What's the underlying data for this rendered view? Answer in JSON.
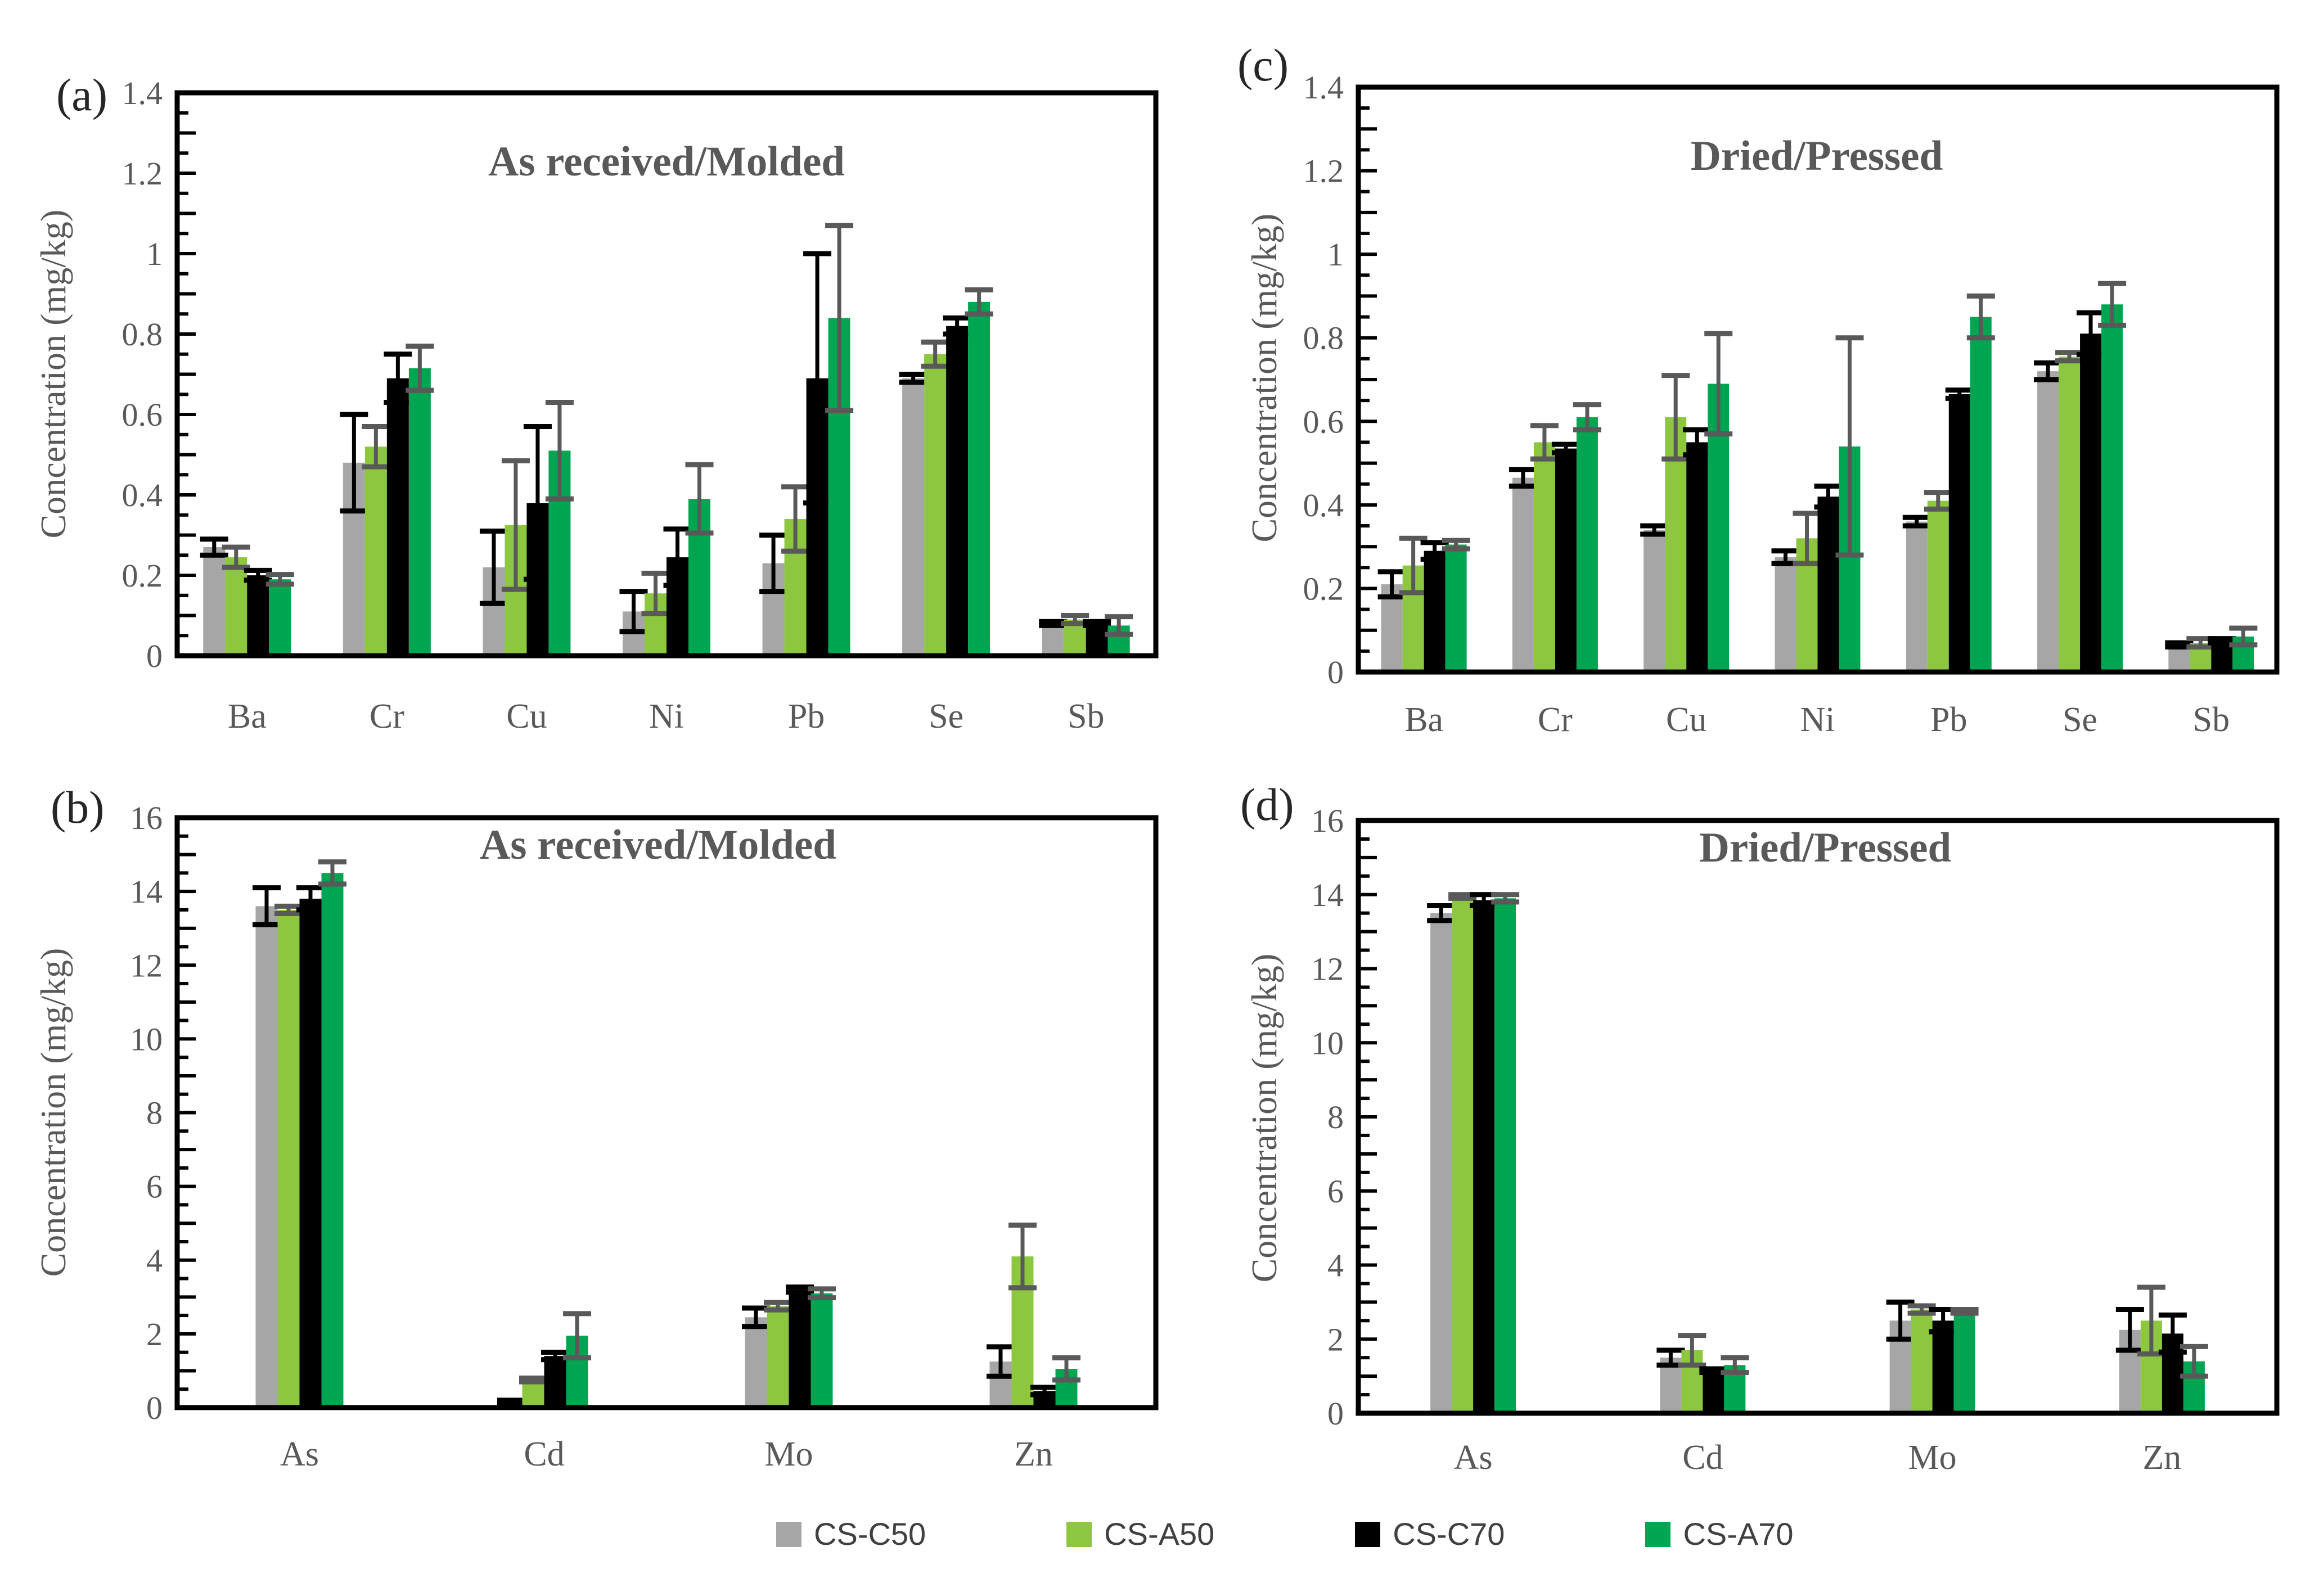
{
  "figure": {
    "background": "#ffffff",
    "text_color": "#595959",
    "axis_color": "#000000",
    "series": [
      {
        "label": "CS-C50",
        "color": "#A6A6A6",
        "error_color": "#000000"
      },
      {
        "label": "CS-A50",
        "color": "#8DC63F",
        "error_color": "#595959"
      },
      {
        "label": "CS-C70",
        "color": "#000000",
        "error_color": "#000000"
      },
      {
        "label": "CS-A70",
        "color": "#00A551",
        "error_color": "#595959"
      }
    ]
  },
  "chart_data": [
    {
      "id": "a",
      "type": "bar",
      "panel_label": "(a)",
      "title": "As received/Molded",
      "ylabel": "Concentration (mg/kg)",
      "ylim": [
        0,
        1.4
      ],
      "ytick_label_step": 0.2,
      "ytick_minor_step": 0.05,
      "grid": false,
      "categories": [
        "Ba",
        "Cr",
        "Cu",
        "Ni",
        "Pb",
        "Se",
        "Sb"
      ],
      "series": [
        {
          "name": "CS-C50",
          "values": [
            0.27,
            0.48,
            0.22,
            0.11,
            0.23,
            0.69,
            0.08
          ],
          "errors": [
            0.02,
            0.12,
            0.09,
            0.05,
            0.07,
            0.01,
            0.005
          ]
        },
        {
          "name": "CS-A50",
          "values": [
            0.245,
            0.52,
            0.325,
            0.155,
            0.34,
            0.75,
            0.09
          ],
          "errors": [
            0.025,
            0.05,
            0.16,
            0.05,
            0.08,
            0.03,
            0.01
          ]
        },
        {
          "name": "CS-C70",
          "values": [
            0.2,
            0.69,
            0.38,
            0.245,
            0.69,
            0.82,
            0.08
          ],
          "errors": [
            0.012,
            0.06,
            0.19,
            0.07,
            0.31,
            0.02,
            0.005
          ]
        },
        {
          "name": "CS-A70",
          "values": [
            0.19,
            0.715,
            0.51,
            0.39,
            0.84,
            0.88,
            0.075
          ],
          "errors": [
            0.012,
            0.055,
            0.12,
            0.085,
            0.23,
            0.03,
            0.022
          ]
        }
      ]
    },
    {
      "id": "b",
      "type": "bar",
      "panel_label": "(b)",
      "title": "As received/Molded",
      "ylabel": "Concentration (mg/kg)",
      "ylim": [
        0,
        16
      ],
      "ytick_label_step": 2,
      "ytick_minor_step": 0.5,
      "grid": false,
      "categories": [
        "As",
        "Cd",
        "Mo",
        "Zn"
      ],
      "series": [
        {
          "name": "CS-C50",
          "values": [
            13.6,
            0.15,
            2.45,
            1.25
          ],
          "errors": [
            0.5,
            0.05,
            0.25,
            0.4
          ]
        },
        {
          "name": "CS-A50",
          "values": [
            13.5,
            0.75,
            2.75,
            4.1
          ],
          "errors": [
            0.1,
            0.05,
            0.1,
            0.85
          ]
        },
        {
          "name": "CS-C70",
          "values": [
            13.8,
            1.4,
            3.2,
            0.45
          ],
          "errors": [
            0.3,
            0.1,
            0.07,
            0.1
          ]
        },
        {
          "name": "CS-A70",
          "values": [
            14.5,
            1.95,
            3.1,
            1.05
          ],
          "errors": [
            0.3,
            0.6,
            0.12,
            0.3
          ]
        }
      ]
    },
    {
      "id": "c",
      "type": "bar",
      "panel_label": "(c)",
      "title": "Dried/Pressed",
      "ylabel": "Concentration (mg/kg)",
      "ylim": [
        0,
        1.4
      ],
      "ytick_label_step": 0.2,
      "ytick_minor_step": 0.05,
      "grid": false,
      "categories": [
        "Ba",
        "Cr",
        "Cu",
        "Ni",
        "Pb",
        "Se",
        "Sb"
      ],
      "series": [
        {
          "name": "CS-C50",
          "values": [
            0.21,
            0.465,
            0.34,
            0.275,
            0.36,
            0.72,
            0.065
          ],
          "errors": [
            0.03,
            0.02,
            0.01,
            0.015,
            0.01,
            0.02,
            0.005
          ]
        },
        {
          "name": "CS-A50",
          "values": [
            0.255,
            0.55,
            0.61,
            0.32,
            0.41,
            0.755,
            0.07
          ],
          "errors": [
            0.065,
            0.04,
            0.1,
            0.06,
            0.02,
            0.01,
            0.01
          ]
        },
        {
          "name": "CS-C70",
          "values": [
            0.29,
            0.535,
            0.55,
            0.42,
            0.665,
            0.81,
            0.075
          ],
          "errors": [
            0.02,
            0.01,
            0.03,
            0.025,
            0.01,
            0.05,
            0.005
          ]
        },
        {
          "name": "CS-A70",
          "values": [
            0.305,
            0.61,
            0.69,
            0.54,
            0.85,
            0.88,
            0.085
          ],
          "errors": [
            0.01,
            0.03,
            0.12,
            0.26,
            0.05,
            0.05,
            0.02
          ]
        }
      ]
    },
    {
      "id": "d",
      "type": "bar",
      "panel_label": "(d)",
      "title": "Dried/Pressed",
      "ylabel": "Concentration (mg/kg)",
      "ylim": [
        0,
        16
      ],
      "ytick_label_step": 2,
      "ytick_minor_step": 0.5,
      "grid": false,
      "categories": [
        "As",
        "Cd",
        "Mo",
        "Zn"
      ],
      "series": [
        {
          "name": "CS-C50",
          "values": [
            13.5,
            1.5,
            2.5,
            2.25
          ],
          "errors": [
            0.2,
            0.2,
            0.5,
            0.55
          ]
        },
        {
          "name": "CS-A50",
          "values": [
            13.95,
            1.7,
            2.8,
            2.5
          ],
          "errors": [
            0.05,
            0.4,
            0.1,
            0.9
          ]
        },
        {
          "name": "CS-C70",
          "values": [
            13.85,
            1.15,
            2.5,
            2.15
          ],
          "errors": [
            0.15,
            0.05,
            0.3,
            0.5
          ]
        },
        {
          "name": "CS-A70",
          "values": [
            13.9,
            1.3,
            2.75,
            1.4
          ],
          "errors": [
            0.1,
            0.2,
            0.05,
            0.4
          ]
        }
      ]
    }
  ]
}
